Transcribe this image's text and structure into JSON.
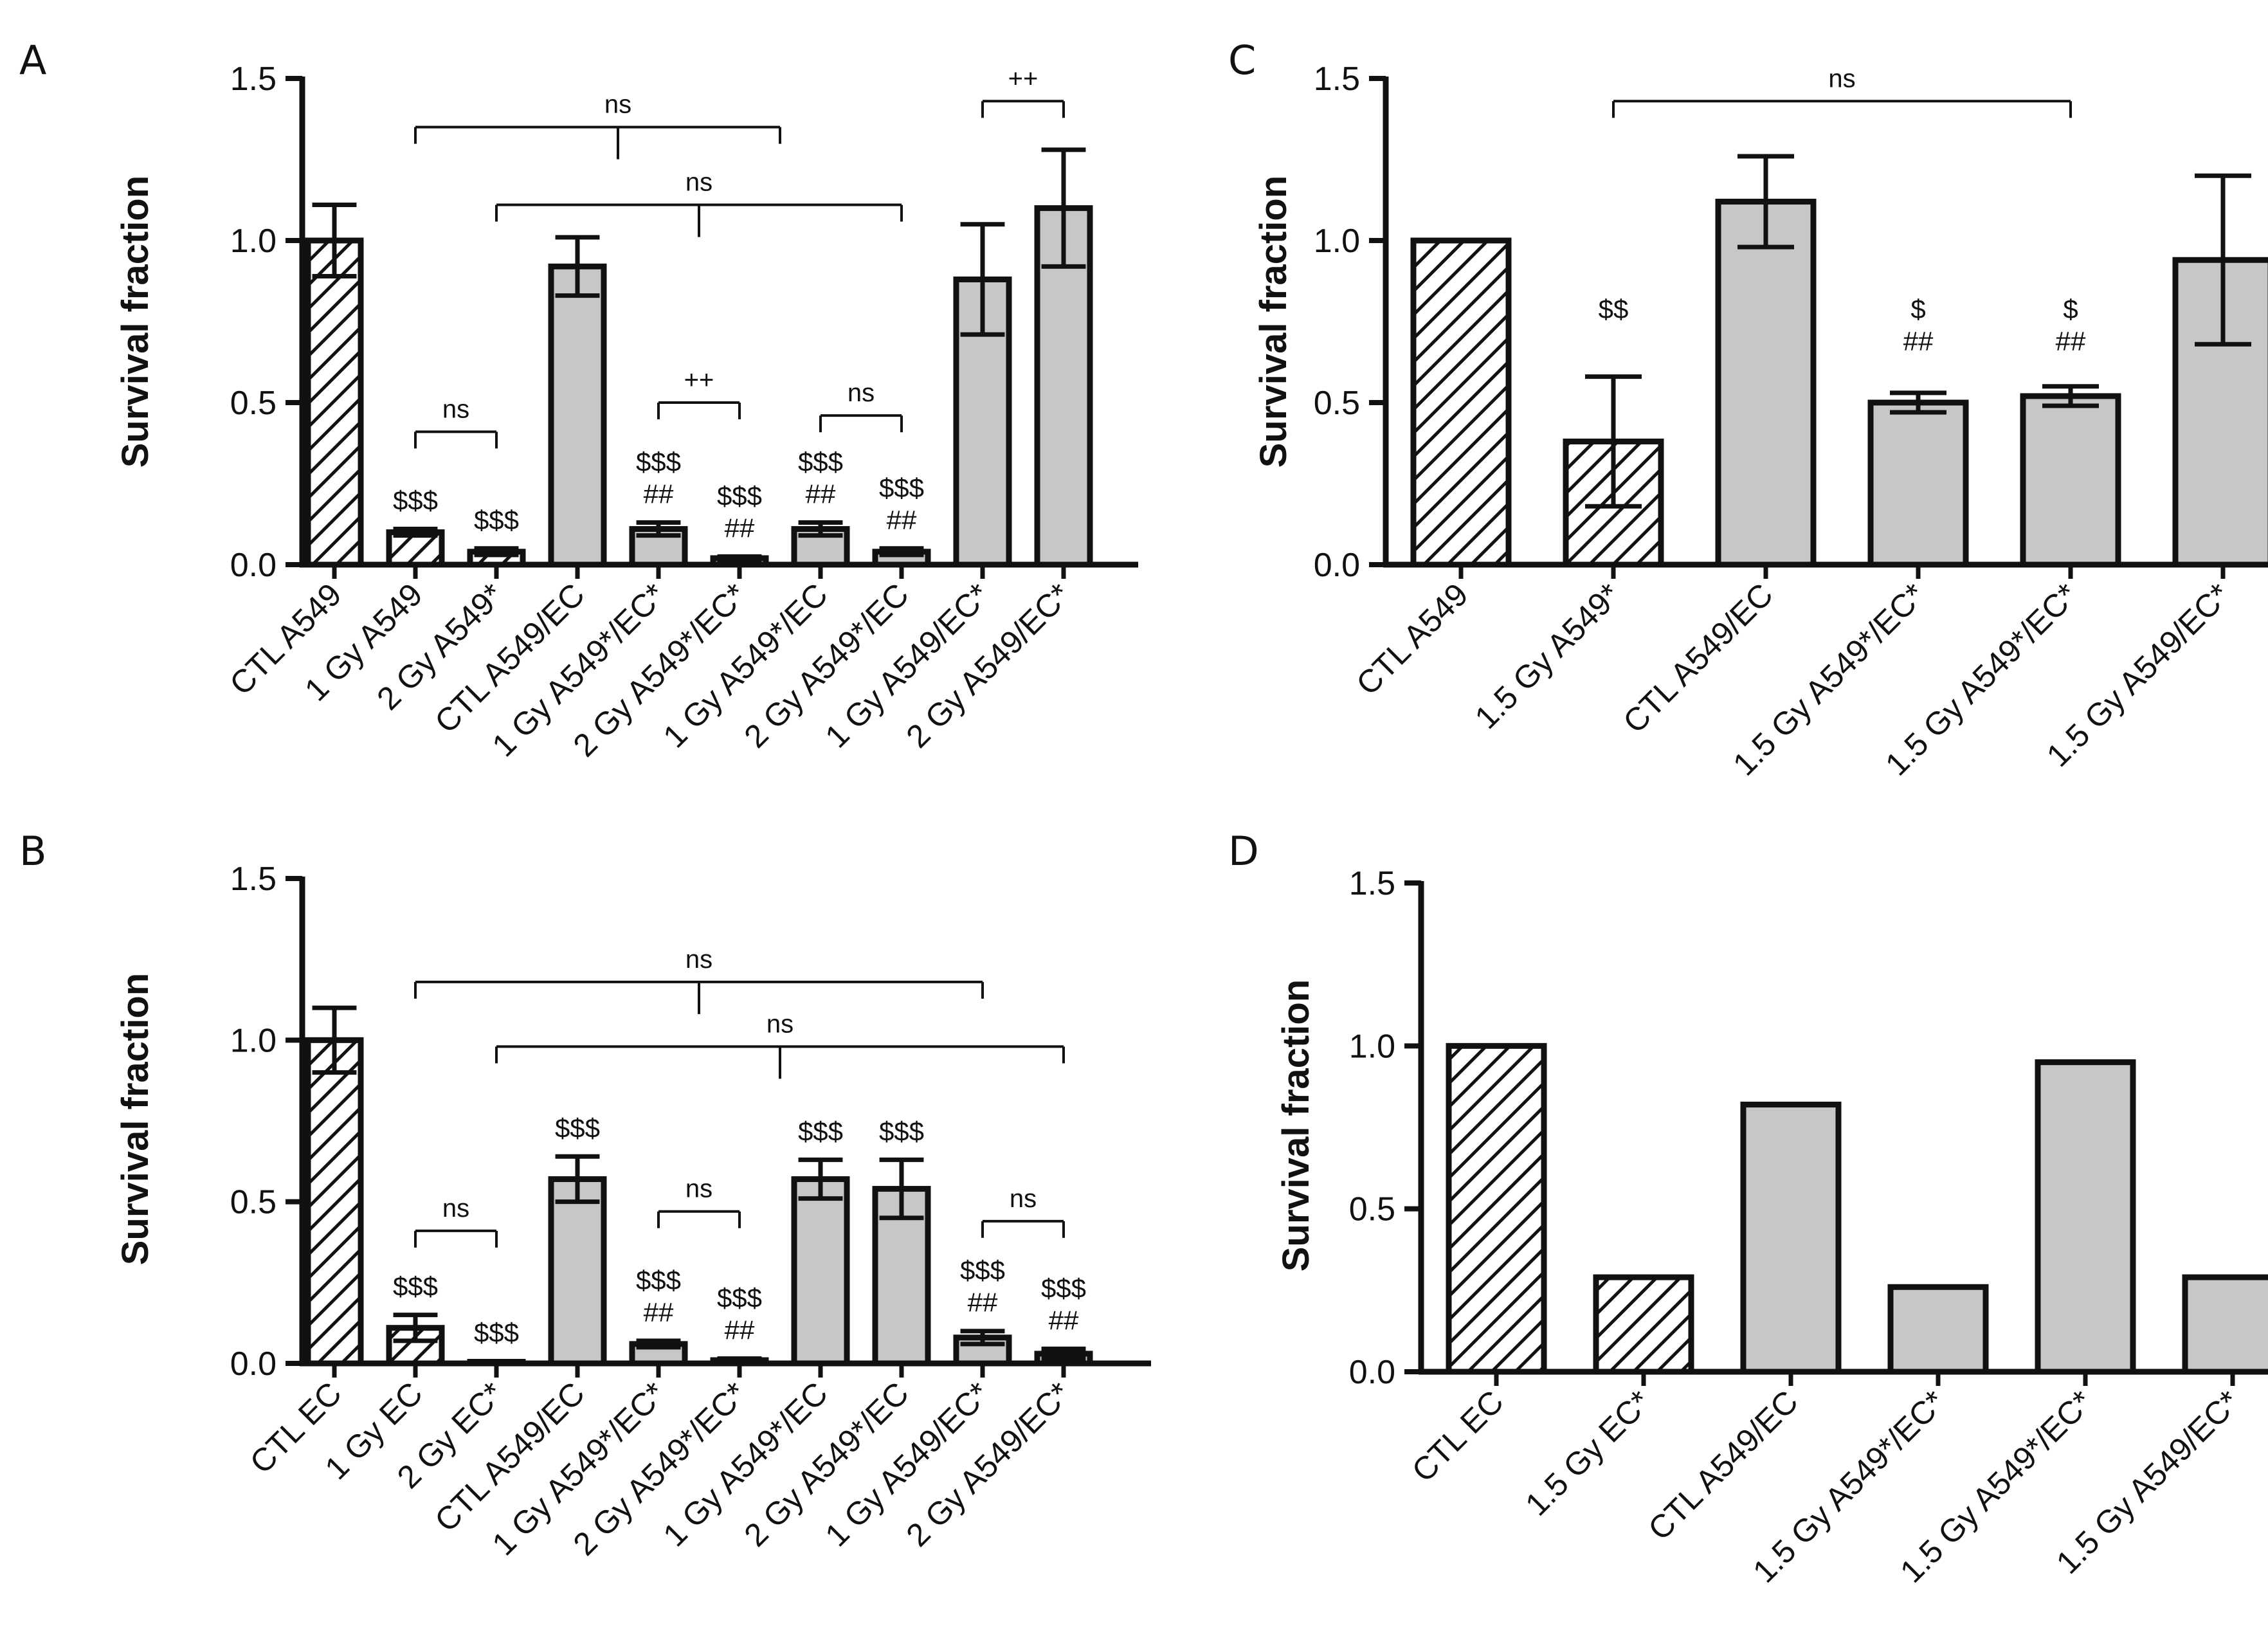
{
  "colors": {
    "axis": "#111111",
    "bar_fill": "#c7c7c7",
    "hatch": "#111111",
    "background": "#ffffff"
  },
  "chart_data": [
    {
      "panel": "A",
      "type": "bar",
      "ylabel": "Survival fraction",
      "ylim": [
        0,
        1.5
      ],
      "yticks": [
        "0.0",
        "0.5",
        "1.0",
        "1.5"
      ],
      "categories": [
        "CTL A549",
        "1 Gy A549",
        "2 Gy A549*",
        "CTL A549/EC",
        "1 Gy A549*/EC*",
        "2 Gy A549*/EC*",
        "1 Gy A549*/EC",
        "2 Gy A549*/EC",
        "1 Gy A549/EC*",
        "2 Gy A549/EC*"
      ],
      "values": [
        1.0,
        0.1,
        0.04,
        0.92,
        0.11,
        0.02,
        0.11,
        0.04,
        0.88,
        1.1
      ],
      "errors": [
        0.11,
        0.01,
        0.01,
        0.09,
        0.02,
        0.005,
        0.02,
        0.01,
        0.17,
        0.18
      ],
      "hatched": [
        true,
        true,
        true,
        false,
        false,
        false,
        false,
        false,
        false,
        false
      ],
      "labels": [
        [],
        [
          "$$$"
        ],
        [
          "$$$"
        ],
        [],
        [
          "$$$",
          "##"
        ],
        [
          "$$$",
          "##"
        ],
        [
          "$$$",
          "##"
        ],
        [
          "$$$",
          "##"
        ],
        [],
        []
      ],
      "brackets": [
        {
          "type": "pair",
          "i": 1,
          "j": 2,
          "text": "ns",
          "y": 0.41
        },
        {
          "type": "pair",
          "i": 4,
          "j": 5,
          "text": "++",
          "y": 0.5
        },
        {
          "type": "pair",
          "i": 6,
          "j": 7,
          "text": "ns",
          "y": 0.46
        },
        {
          "type": "pair",
          "i": 8,
          "j": 9,
          "text": "++",
          "y": 1.43
        },
        {
          "type": "fork",
          "i": 1,
          "j": 5.5,
          "mid": 3.5,
          "text": "ns",
          "y": 1.35
        },
        {
          "type": "fork",
          "i": 2,
          "j": 7,
          "mid": 4.5,
          "text": "ns",
          "y": 1.11
        }
      ]
    },
    {
      "panel": "B",
      "type": "bar",
      "ylabel": "Survival fraction",
      "ylim": [
        0,
        1.5
      ],
      "yticks": [
        "0.0",
        "0.5",
        "1.0",
        "1.5"
      ],
      "categories": [
        "CTL EC",
        "1 Gy EC",
        "2 Gy EC*",
        "CTL A549/EC",
        "1 Gy A549*/EC*",
        "2 Gy A549*/EC*",
        "1 Gy A549*/EC",
        "2 Gy A549*/EC",
        "1 Gy A549/EC*",
        "2 Gy A549/EC*"
      ],
      "values": [
        1.0,
        0.11,
        0.005,
        0.57,
        0.06,
        0.01,
        0.57,
        0.54,
        0.08,
        0.03
      ],
      "errors": [
        0.1,
        0.04,
        0.002,
        0.07,
        0.01,
        0.005,
        0.06,
        0.09,
        0.02,
        0.015
      ],
      "hatched": [
        true,
        true,
        true,
        false,
        false,
        false,
        false,
        false,
        false,
        false
      ],
      "labels": [
        [],
        [
          "$$$"
        ],
        [
          "$$$"
        ],
        [
          "$$$"
        ],
        [
          "$$$",
          "##"
        ],
        [
          "$$$",
          "##"
        ],
        [
          "$$$"
        ],
        [
          "$$$"
        ],
        [
          "$$$",
          "##"
        ],
        [
          "$$$",
          "##"
        ]
      ],
      "brackets": [
        {
          "type": "pair",
          "i": 1,
          "j": 2,
          "text": "ns",
          "y": 0.41
        },
        {
          "type": "pair",
          "i": 4,
          "j": 5,
          "text": "ns",
          "y": 0.47
        },
        {
          "type": "pair",
          "i": 8,
          "j": 9,
          "text": "ns",
          "y": 0.44
        },
        {
          "type": "fork",
          "i": 1,
          "j": 8,
          "mid": 4.5,
          "text": "ns",
          "y": 1.18
        },
        {
          "type": "fork",
          "i": 2,
          "j": 9,
          "mid": 5.5,
          "text": "ns",
          "y": 0.98
        }
      ]
    },
    {
      "panel": "C",
      "type": "bar",
      "ylabel": "Survival fraction",
      "ylim": [
        0,
        1.5
      ],
      "yticks": [
        "0.0",
        "0.5",
        "1.0",
        "1.5"
      ],
      "categories": [
        "CTL A549",
        "1.5 Gy A549*",
        "CTL A549/EC",
        "1.5 Gy A549*/EC*",
        "1.5 Gy A549*/EC*",
        "1.5 Gy A549/EC*"
      ],
      "values": [
        1.0,
        0.38,
        1.12,
        0.5,
        0.52,
        0.94
      ],
      "errors": [
        0,
        0.2,
        0.14,
        0.03,
        0.03,
        0.26
      ],
      "hatched": [
        true,
        true,
        false,
        false,
        false,
        false
      ],
      "labels": [
        [],
        [
          "$$"
        ],
        [],
        [
          "$",
          "##"
        ],
        [
          "$",
          "##"
        ],
        []
      ],
      "label_y": [
        null,
        0.76,
        null,
        0.76,
        0.76,
        null
      ],
      "brackets": [
        {
          "type": "pair",
          "i": 1,
          "j": 4,
          "text": "ns",
          "y": 1.43
        }
      ]
    },
    {
      "panel": "D",
      "type": "bar",
      "ylabel": "Survival fraction",
      "ylim": [
        0,
        1.5
      ],
      "yticks": [
        "0.0",
        "0.5",
        "1.0",
        "1.5"
      ],
      "categories": [
        "CTL EC",
        "1.5 Gy EC*",
        "CTL A549/EC",
        "1.5 Gy A549*/EC*",
        "1.5 Gy A549*/EC*",
        "1.5 Gy A549/EC*"
      ],
      "values": [
        1.0,
        0.29,
        0.82,
        0.26,
        0.95,
        0.29
      ],
      "errors": [
        0,
        0,
        0,
        0,
        0,
        0
      ],
      "hatched": [
        true,
        true,
        false,
        false,
        false,
        false
      ],
      "labels": [
        [],
        [],
        [],
        [],
        [],
        []
      ],
      "brackets": []
    }
  ]
}
